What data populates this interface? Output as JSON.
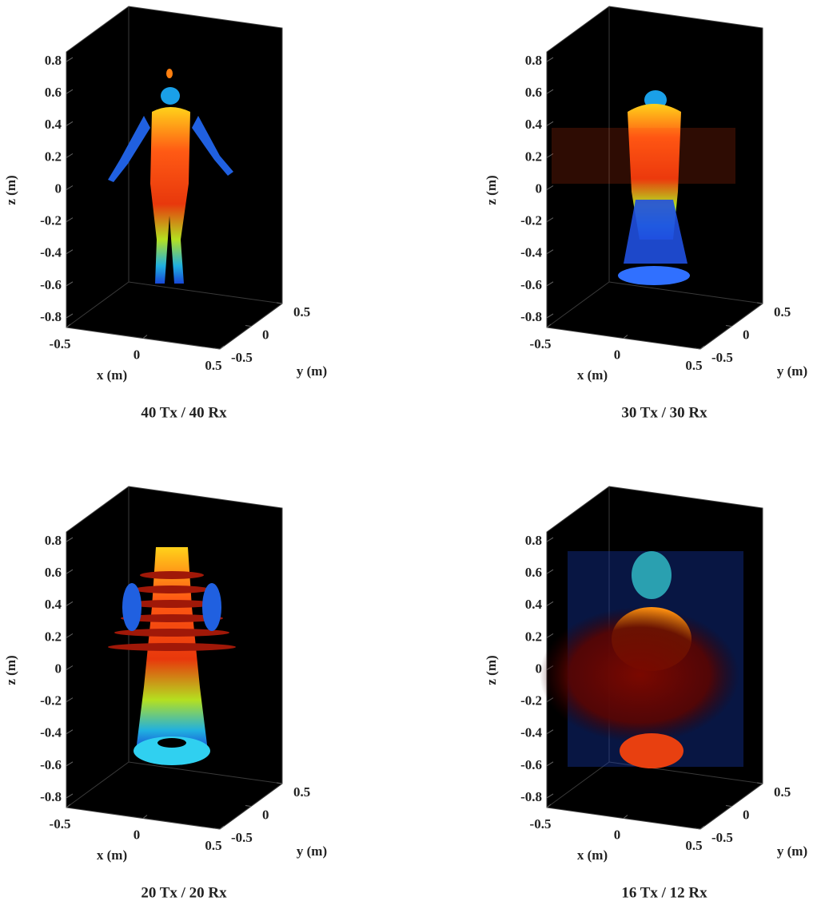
{
  "chart_data": [
    {
      "type": "volume",
      "title": "40 Tx / 40 Rx",
      "xlabel": "x (m)",
      "ylabel": "y (m)",
      "zlabel": "z (m)",
      "xlim": [
        -0.5,
        0.5
      ],
      "ylim": [
        -0.5,
        0.5
      ],
      "zlim": [
        -0.86,
        0.86
      ],
      "xticks": [
        -0.5,
        0,
        0.5
      ],
      "yticks": [
        -0.5,
        0,
        0.5
      ],
      "zticks": [
        -0.8,
        -0.6,
        -0.4,
        -0.2,
        0,
        0.2,
        0.4,
        0.6,
        0.8
      ]
    },
    {
      "type": "volume",
      "title": "30 Tx / 30 Rx",
      "xlabel": "x (m)",
      "ylabel": "y (m)",
      "zlabel": "z (m)",
      "xlim": [
        -0.5,
        0.5
      ],
      "ylim": [
        -0.5,
        0.5
      ],
      "zlim": [
        -0.86,
        0.86
      ],
      "xticks": [
        -0.5,
        0,
        0.5
      ],
      "yticks": [
        -0.5,
        0,
        0.5
      ],
      "zticks": [
        -0.8,
        -0.6,
        -0.4,
        -0.2,
        0,
        0.2,
        0.4,
        0.6,
        0.8
      ]
    },
    {
      "type": "volume",
      "title": "20 Tx / 20 Rx",
      "xlabel": "x (m)",
      "ylabel": "y (m)",
      "zlabel": "z (m)",
      "xlim": [
        -0.5,
        0.5
      ],
      "ylim": [
        -0.5,
        0.5
      ],
      "zlim": [
        -0.86,
        0.86
      ],
      "xticks": [
        -0.5,
        0,
        0.5
      ],
      "yticks": [
        -0.5,
        0,
        0.5
      ],
      "zticks": [
        -0.8,
        -0.6,
        -0.4,
        -0.2,
        0,
        0.2,
        0.4,
        0.6,
        0.8
      ]
    },
    {
      "type": "volume",
      "title": "16 Tx / 12 Rx",
      "xlabel": "x (m)",
      "ylabel": "y (m)",
      "zlabel": "z (m)",
      "xlim": [
        -0.5,
        0.5
      ],
      "ylim": [
        -0.5,
        0.5
      ],
      "zlim": [
        -0.86,
        0.86
      ],
      "xticks": [
        -0.5,
        0,
        0.5
      ],
      "yticks": [
        -0.5,
        0,
        0.5
      ],
      "zticks": [
        -0.8,
        -0.6,
        -0.4,
        -0.2,
        0,
        0.2,
        0.4,
        0.6,
        0.8
      ]
    }
  ]
}
